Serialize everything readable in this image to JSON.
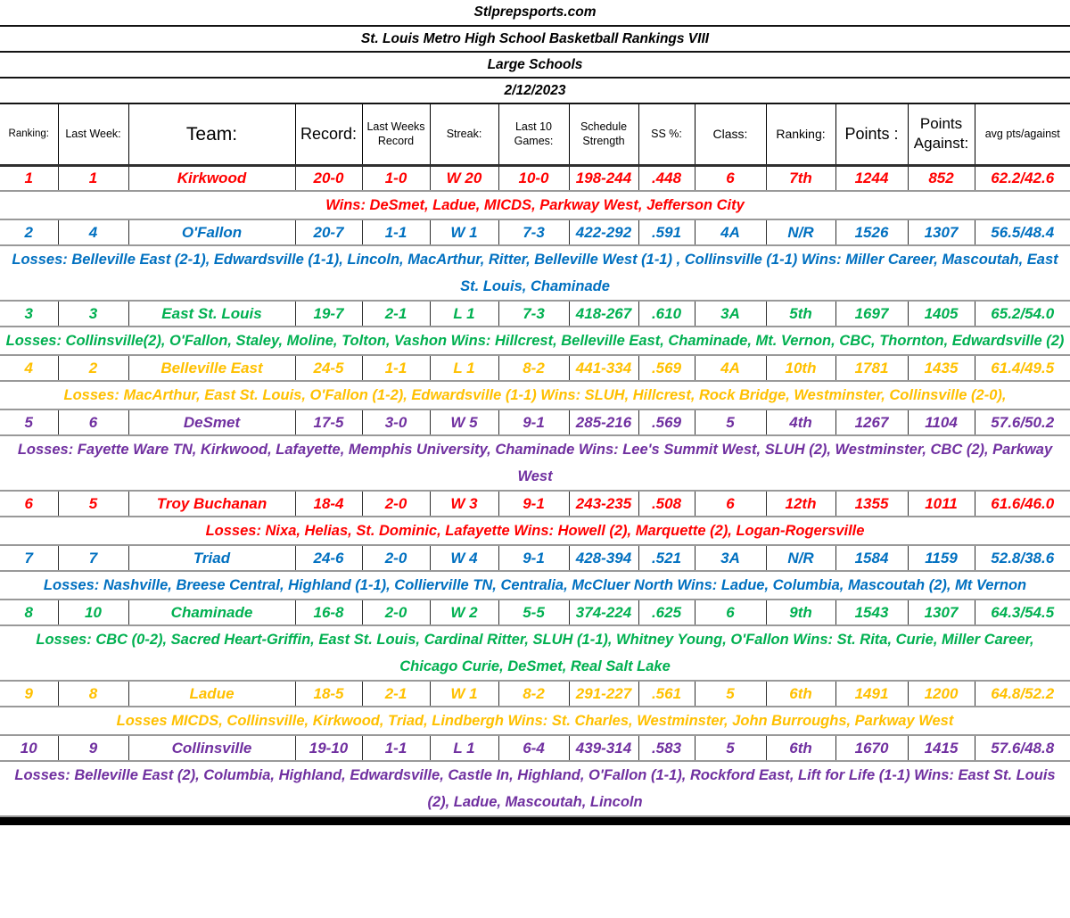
{
  "titles": [
    "Stlprepsports.com",
    "St. Louis Metro High School Basketball Rankings VIII",
    "Large Schools",
    "2/12/2023"
  ],
  "columns": [
    "Ranking:",
    "Last Week:",
    "Team:",
    "Record:",
    "Last Weeks Record",
    "Streak:",
    "Last 10 Games:",
    "Schedule Strength",
    "SS %:",
    "Class:",
    "Ranking:",
    "Points :",
    "Points Against:",
    "avg pts/against"
  ],
  "palette": {
    "red": "#FF0000",
    "blue": "#0070C0",
    "green": "#00B050",
    "gold": "#FFC000",
    "purple": "#7030A0"
  },
  "teams": [
    {
      "rank": "1",
      "last_week": "1",
      "team": "Kirkwood",
      "record": "20-0",
      "last_weeks_record": "1-0",
      "streak": "W 20",
      "last10": "10-0",
      "schedule_strength": "198-244",
      "ss_pct": ".448",
      "class": "6",
      "state_rank": "7th",
      "points": "1244",
      "points_against": "852",
      "avg": "62.2/42.6",
      "color": "#FF0000",
      "note": "Wins: DeSmet, Ladue, MICDS, Parkway West, Jefferson City"
    },
    {
      "rank": "2",
      "last_week": "4",
      "team": "O'Fallon",
      "record": "20-7",
      "last_weeks_record": "1-1",
      "streak": "W 1",
      "last10": "7-3",
      "schedule_strength": "422-292",
      "ss_pct": ".591",
      "class": "4A",
      "state_rank": "N/R",
      "points": "1526",
      "points_against": "1307",
      "avg": "56.5/48.4",
      "color": "#0070C0",
      "note": "Losses: Belleville East (2-1), Edwardsville (1-1), Lincoln, MacArthur, Ritter, Belleville West (1-1) , Collinsville (1-1) Wins: Miller Career, Mascoutah, East St. Louis, Chaminade"
    },
    {
      "rank": "3",
      "last_week": "3",
      "team": "East St. Louis",
      "record": "19-7",
      "last_weeks_record": "2-1",
      "streak": "L 1",
      "last10": "7-3",
      "schedule_strength": "418-267",
      "ss_pct": ".610",
      "class": "3A",
      "state_rank": "5th",
      "points": "1697",
      "points_against": "1405",
      "avg": "65.2/54.0",
      "color": "#00B050",
      "note": "Losses: Collinsville(2), O'Fallon, Staley, Moline, Tolton, Vashon  Wins: Hillcrest, Belleville East, Chaminade, Mt. Vernon, CBC, Thornton, Edwardsville (2)"
    },
    {
      "rank": "4",
      "last_week": "2",
      "team": "Belleville East",
      "record": "24-5",
      "last_weeks_record": "1-1",
      "streak": "L 1",
      "last10": "8-2",
      "schedule_strength": "441-334",
      "ss_pct": ".569",
      "class": "4A",
      "state_rank": "10th",
      "points": "1781",
      "points_against": "1435",
      "avg": "61.4/49.5",
      "color": "#FFC000",
      "note": "Losses: MacArthur, East St. Louis, O'Fallon (1-2), Edwardsville (1-1) Wins: SLUH, Hillcrest, Rock Bridge, Westminster, Collinsville (2-0),"
    },
    {
      "rank": "5",
      "last_week": "6",
      "team": "DeSmet",
      "record": "17-5",
      "last_weeks_record": "3-0",
      "streak": "W 5",
      "last10": "9-1",
      "schedule_strength": "285-216",
      "ss_pct": ".569",
      "class": "5",
      "state_rank": "4th",
      "points": "1267",
      "points_against": "1104",
      "avg": "57.6/50.2",
      "color": "#7030A0",
      "note": "Losses: Fayette Ware TN, Kirkwood, Lafayette, Memphis University, Chaminade  Wins: Lee's Summit West, SLUH (2), Westminster, CBC (2), Parkway West"
    },
    {
      "rank": "6",
      "last_week": "5",
      "team": "Troy Buchanan",
      "record": "18-4",
      "last_weeks_record": "2-0",
      "streak": "W 3",
      "last10": "9-1",
      "schedule_strength": "243-235",
      "ss_pct": ".508",
      "class": "6",
      "state_rank": "12th",
      "points": "1355",
      "points_against": "1011",
      "avg": "61.6/46.0",
      "color": "#FF0000",
      "note": "Losses: Nixa, Helias, St. Dominic, Lafayette  Wins: Howell (2), Marquette (2), Logan-Rogersville"
    },
    {
      "rank": "7",
      "last_week": "7",
      "team": "Triad",
      "record": "24-6",
      "last_weeks_record": "2-0",
      "streak": "W 4",
      "last10": "9-1",
      "schedule_strength": "428-394",
      "ss_pct": ".521",
      "class": "3A",
      "state_rank": "N/R",
      "points": "1584",
      "points_against": "1159",
      "avg": "52.8/38.6",
      "color": "#0070C0",
      "note": "Losses: Nashville, Breese Central, Highland (1-1), Collierville TN, Centralia, McCluer North Wins: Ladue, Columbia, Mascoutah (2), Mt Vernon"
    },
    {
      "rank": "8",
      "last_week": "10",
      "team": "Chaminade",
      "record": "16-8",
      "last_weeks_record": "2-0",
      "streak": "W 2",
      "last10": "5-5",
      "schedule_strength": "374-224",
      "ss_pct": ".625",
      "class": "6",
      "state_rank": "9th",
      "points": "1543",
      "points_against": "1307",
      "avg": "64.3/54.5",
      "color": "#00B050",
      "note": "Losses: CBC (0-2), Sacred Heart-Griffin, East St. Louis, Cardinal Ritter, SLUH (1-1), Whitney Young, O'Fallon  Wins: St. Rita, Curie, Miller Career, Chicago Curie, DeSmet, Real Salt Lake"
    },
    {
      "rank": "9",
      "last_week": "8",
      "team": "Ladue",
      "record": "18-5",
      "last_weeks_record": "2-1",
      "streak": "W 1",
      "last10": "8-2",
      "schedule_strength": "291-227",
      "ss_pct": ".561",
      "class": "5",
      "state_rank": "6th",
      "points": "1491",
      "points_against": "1200",
      "avg": "64.8/52.2",
      "color": "#FFC000",
      "note": "Losses MICDS, Collinsville, Kirkwood, Triad, Lindbergh  Wins: St. Charles, Westminster, John Burroughs, Parkway West"
    },
    {
      "rank": "10",
      "last_week": "9",
      "team": "Collinsville",
      "record": "19-10",
      "last_weeks_record": "1-1",
      "streak": "L 1",
      "last10": "6-4",
      "schedule_strength": "439-314",
      "ss_pct": ".583",
      "class": "5",
      "state_rank": "6th",
      "points": "1670",
      "points_against": "1415",
      "avg": "57.6/48.8",
      "color": "#7030A0",
      "note": "Losses: Belleville East (2), Columbia, Highland, Edwardsville, Castle In, Highland, O'Fallon (1-1), Rockford East, Lift for Life (1-1) Wins: East St. Louis (2), Ladue, Mascoutah, Lincoln"
    }
  ]
}
